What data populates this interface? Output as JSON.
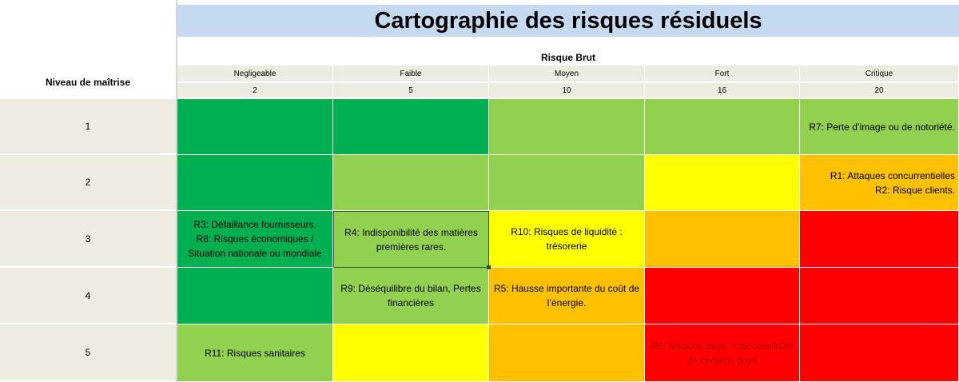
{
  "title": "Cartographie des risques résiduels",
  "col_group_label": "Risque Brut",
  "row_axis_label": "Niveau de maîtrise",
  "columns": [
    {
      "label": "Negligeable",
      "value": "2"
    },
    {
      "label": "Faible",
      "value": "5"
    },
    {
      "label": "Moyen",
      "value": "10"
    },
    {
      "label": "Fort",
      "value": "16"
    },
    {
      "label": "Critique",
      "value": "20"
    }
  ],
  "rows": [
    {
      "label": "1"
    },
    {
      "label": "2"
    },
    {
      "label": "3"
    },
    {
      "label": "4"
    },
    {
      "label": "5"
    }
  ],
  "colors": {
    "dark_green": "#00b050",
    "light_green": "#92d050",
    "yellow": "#ffff00",
    "orange": "#ffc000",
    "red": "#ff0000",
    "header_bg": "#eeece1",
    "title_bg": "#c5d9f1"
  },
  "matrix": [
    [
      {
        "color": "dark_green",
        "text": ""
      },
      {
        "color": "dark_green",
        "text": ""
      },
      {
        "color": "light_green",
        "text": ""
      },
      {
        "color": "light_green",
        "text": ""
      },
      {
        "color": "light_green",
        "text": "R7: Perte d’image ou de notoriété."
      }
    ],
    [
      {
        "color": "dark_green",
        "text": ""
      },
      {
        "color": "light_green",
        "text": ""
      },
      {
        "color": "light_green",
        "text": ""
      },
      {
        "color": "yellow",
        "text": ""
      },
      {
        "color": "orange",
        "text": "R1: Attaques concurrentielles\nR2: Risque clients."
      }
    ],
    [
      {
        "color": "dark_green",
        "text": "R3: Défaillance fournisseurs.\nR8: Risques économiques / Situation nationale ou mondiale"
      },
      {
        "color": "light_green",
        "text": "R4: Indisponibilité des matières premières rares."
      },
      {
        "color": "yellow",
        "text": "R10: Risques de liquidité : trésorerie"
      },
      {
        "color": "orange",
        "text": ""
      },
      {
        "color": "red",
        "text": ""
      }
    ],
    [
      {
        "color": "dark_green",
        "text": ""
      },
      {
        "color": "light_green",
        "text": "R9: Déséquilibre du bilan, Pertes financières"
      },
      {
        "color": "orange",
        "text": "R5: Hausse importante du coût de l’énergie."
      },
      {
        "color": "red",
        "text": ""
      },
      {
        "color": "red",
        "text": ""
      }
    ],
    [
      {
        "color": "light_green",
        "text": "R11: Risques sanitaires"
      },
      {
        "color": "yellow",
        "text": ""
      },
      {
        "color": "orange",
        "text": ""
      },
      {
        "color": "red",
        "text": "R6: Risques pays : inaccessibilité de certains pays"
      },
      {
        "color": "red",
        "text": ""
      }
    ]
  ]
}
